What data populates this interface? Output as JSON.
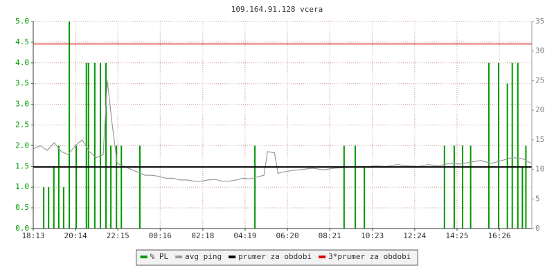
{
  "chart_data": {
    "type": "line",
    "title": "109.164.91.128 vcera",
    "xlim": [
      0,
      1426
    ],
    "xticks": [
      {
        "value": 0,
        "label": "18:13"
      },
      {
        "value": 121,
        "label": "20:14"
      },
      {
        "value": 242,
        "label": "22:15"
      },
      {
        "value": 363,
        "label": "00:16"
      },
      {
        "value": 485,
        "label": "02:18"
      },
      {
        "value": 606,
        "label": "04:19"
      },
      {
        "value": 727,
        "label": "06:20"
      },
      {
        "value": 848,
        "label": "08:21"
      },
      {
        "value": 970,
        "label": "10:23"
      },
      {
        "value": 1091,
        "label": "12:24"
      },
      {
        "value": 1212,
        "label": "14:25"
      },
      {
        "value": 1333,
        "label": "16:26"
      }
    ],
    "ylim": [
      0,
      5
    ],
    "yticks": [
      {
        "value": 0,
        "label": "0.0"
      },
      {
        "value": 0.5,
        "label": "0.5"
      },
      {
        "value": 1,
        "label": "1.0"
      },
      {
        "value": 1.5,
        "label": "1.5"
      },
      {
        "value": 2,
        "label": "2.0"
      },
      {
        "value": 2.5,
        "label": "2.5"
      },
      {
        "value": 3,
        "label": "3.0"
      },
      {
        "value": 3.5,
        "label": "3.5"
      },
      {
        "value": 4,
        "label": "4.0"
      },
      {
        "value": 4.5,
        "label": "4.5"
      },
      {
        "value": 5,
        "label": "5.0"
      }
    ],
    "y2lim": [
      0,
      35
    ],
    "y2ticks": [
      0,
      5,
      10,
      15,
      20,
      25,
      30,
      35
    ],
    "grid": true,
    "series": [
      {
        "name": "% PL",
        "color": "#009900",
        "style": "spikes",
        "axis": "y",
        "x": [
          30,
          44,
          59,
          73,
          87,
          103,
          123,
          152,
          158,
          176,
          192,
          208,
          222,
          238,
          252,
          305,
          634,
          889,
          921,
          947,
          1176,
          1204,
          1228,
          1251,
          1303,
          1331,
          1356,
          1370,
          1386,
          1399,
          1409
        ],
        "values": [
          1,
          1,
          1.5,
          2,
          1,
          5,
          2,
          4,
          4,
          4,
          4,
          4,
          2,
          2,
          2,
          2,
          2,
          2,
          2,
          1.5,
          2,
          2,
          2,
          2,
          4,
          4,
          3.5,
          4,
          4,
          1.5,
          2
        ]
      },
      {
        "name": "avg ping",
        "color": "#999999",
        "style": "line",
        "axis": "y2",
        "x": [
          0,
          20,
          40,
          60,
          80,
          100,
          120,
          140,
          160,
          180,
          200,
          212,
          225,
          240,
          260,
          280,
          300,
          320,
          340,
          360,
          380,
          400,
          420,
          440,
          460,
          480,
          500,
          520,
          540,
          560,
          580,
          600,
          620,
          660,
          670,
          690,
          700,
          710,
          740,
          770,
          800,
          830,
          860,
          890,
          920,
          950,
          980,
          1010,
          1040,
          1070,
          1100,
          1130,
          1160,
          1190,
          1220,
          1250,
          1280,
          1310,
          1340,
          1370,
          1400,
          1425
        ],
        "values": [
          13.5,
          14,
          13.2,
          14.5,
          13,
          12.5,
          14,
          15,
          13,
          12,
          12.5,
          25,
          18,
          11,
          10.5,
          10,
          9.5,
          9,
          9,
          8.8,
          8.5,
          8.5,
          8.2,
          8.2,
          8,
          8,
          8.2,
          8.3,
          8,
          8,
          8.2,
          8.5,
          8.4,
          9,
          13,
          12.8,
          9.3,
          9.5,
          9.8,
          10,
          10.2,
          9.9,
          10.2,
          10.3,
          10.5,
          10.4,
          10.6,
          10.5,
          10.8,
          10.6,
          10.5,
          10.8,
          10.6,
          11,
          10.9,
          11.2,
          11.5,
          11,
          11.5,
          12,
          11.8,
          11
        ]
      },
      {
        "name": "prumer za obdobi",
        "color": "#000000",
        "style": "hline",
        "axis": "y2",
        "values": [
          10.4
        ]
      },
      {
        "name": "3*prumer za obdobi",
        "color": "#dd0000",
        "style": "hline",
        "axis": "y2",
        "values": [
          31.2
        ]
      }
    ]
  }
}
